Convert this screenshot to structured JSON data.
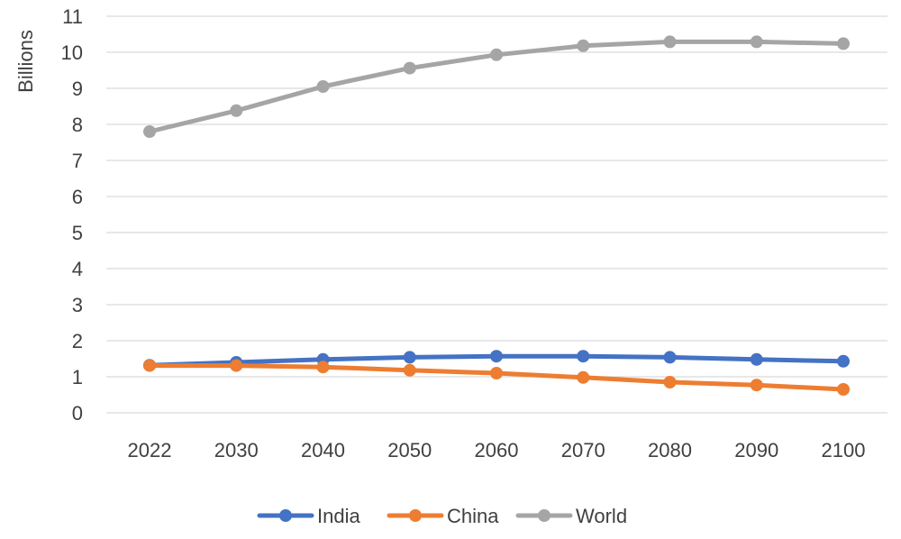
{
  "chart_data": {
    "type": "line",
    "title": "",
    "xlabel": "",
    "ylabel": "Billions",
    "ylim": [
      0,
      11
    ],
    "yticks": [
      "0",
      "1",
      "2",
      "3",
      "4",
      "5",
      "6",
      "7",
      "8",
      "9",
      "10",
      "11"
    ],
    "categories": [
      "2022",
      "2030",
      "2040",
      "2050",
      "2060",
      "2070",
      "2080",
      "2090",
      "2100"
    ],
    "grid": true,
    "legend_position": "bottom",
    "series": [
      {
        "name": "India",
        "color": "#4472C4",
        "values": [
          1.32,
          1.4,
          1.48,
          1.54,
          1.57,
          1.57,
          1.54,
          1.48,
          1.43
        ]
      },
      {
        "name": "China",
        "color": "#ED7D31",
        "values": [
          1.31,
          1.31,
          1.27,
          1.18,
          1.1,
          0.98,
          0.85,
          0.77,
          0.65
        ]
      },
      {
        "name": "World",
        "color": "#A5A5A5",
        "values": [
          7.8,
          8.38,
          9.05,
          9.56,
          9.93,
          10.18,
          10.29,
          10.29,
          10.24
        ]
      }
    ]
  }
}
